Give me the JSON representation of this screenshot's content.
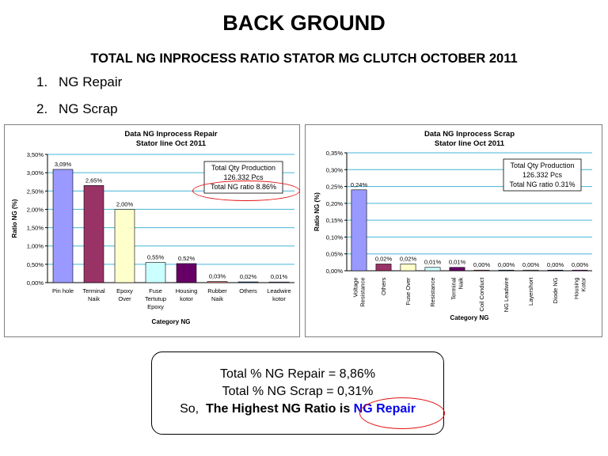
{
  "page": {
    "title": "BACK GROUND",
    "subtitle": "TOTAL NG INPROCESS RATIO STATOR MG CLUTCH OCTOBER 2011",
    "list": [
      {
        "num": "1.",
        "label": "NG Repair"
      },
      {
        "num": "2.",
        "label": "NG Scrap"
      }
    ]
  },
  "summary": {
    "line1": "Total % NG Repair = 8,86%",
    "line2": "Total % NG Scrap = 0,31%",
    "line3_prefix": "So,",
    "line3_bold": "The Highest NG Ratio is",
    "line3_highlight": "NG Repair"
  },
  "chart_data": [
    {
      "type": "bar",
      "title": [
        "Data NG Inprocess Repair",
        "Stator line Oct 2011"
      ],
      "xlabel": "Category NG",
      "ylabel": "Ratio NG (%)",
      "ylim": [
        0,
        3.5
      ],
      "yticks": [
        "0,00%",
        "0,50%",
        "1,00%",
        "1,50%",
        "2,00%",
        "2,50%",
        "3,00%",
        "3,50%"
      ],
      "categories": [
        [
          "Pin hole"
        ],
        [
          "Terminal",
          "Naik"
        ],
        [
          "Epoxy",
          "Over"
        ],
        [
          "Fuse",
          "Tertutup",
          "Epoxy"
        ],
        [
          "Housing",
          "kotor"
        ],
        [
          "Rubber",
          "Naik"
        ],
        [
          "Others"
        ],
        [
          "Leadwire",
          "kotor"
        ]
      ],
      "values": [
        3.09,
        2.65,
        2.0,
        0.55,
        0.52,
        0.03,
        0.02,
        0.01
      ],
      "data_labels": [
        "3,09%",
        "2,65%",
        "2,00%",
        "0,55%",
        "0,52%",
        "0,03%",
        "0,02%",
        "0,01%"
      ],
      "colors": [
        "#9999ff",
        "#993366",
        "#ffffcc",
        "#ccffff",
        "#660066",
        "#ff8080",
        "#0066cc",
        "#ccccff"
      ],
      "grid": true,
      "legend_box": [
        "Total Qty Production",
        "126.332 Pcs",
        "Total NG ratio 8.86%"
      ],
      "legend_placement": "top-right"
    },
    {
      "type": "bar",
      "title": [
        "Data NG Inprocess Scrap",
        "Stator line Oct 2011"
      ],
      "xlabel": "Category NG",
      "ylabel": "Ratio NG (%)",
      "ylim": [
        0,
        0.35
      ],
      "yticks": [
        "0,00%",
        "0,05%",
        "0,10%",
        "0,15%",
        "0,20%",
        "0,25%",
        "0,30%",
        "0,35%"
      ],
      "categories": [
        [
          "Voltage",
          "Resistance"
        ],
        [
          "Others"
        ],
        [
          "Fuse Over"
        ],
        [
          "Resistance"
        ],
        [
          "Terminal",
          "Naik"
        ],
        [
          "Coil Conduct"
        ],
        [
          "NG Leadwire"
        ],
        [
          "Layershort"
        ],
        [
          "Diode NG"
        ],
        [
          "Housing",
          "Kotor"
        ]
      ],
      "values": [
        0.24,
        0.02,
        0.02,
        0.01,
        0.01,
        0.0,
        0.0,
        0.0,
        0.0,
        0.0
      ],
      "data_labels": [
        "0,24%",
        "0,02%",
        "0,02%",
        "0,01%",
        "0,01%",
        "0,00%",
        "0,00%",
        "0,00%",
        "0,00%",
        "0,00%"
      ],
      "colors": [
        "#9999ff",
        "#993366",
        "#ffffcc",
        "#ccffff",
        "#660066",
        "#ff8080",
        "#0066cc",
        "#ccccff",
        "#000080",
        "#ff00ff"
      ],
      "grid": true,
      "legend_box": [
        "Total Qty Production",
        "126.332 Pcs",
        "Total NG ratio 0.31%"
      ],
      "legend_placement": "top-right"
    }
  ]
}
